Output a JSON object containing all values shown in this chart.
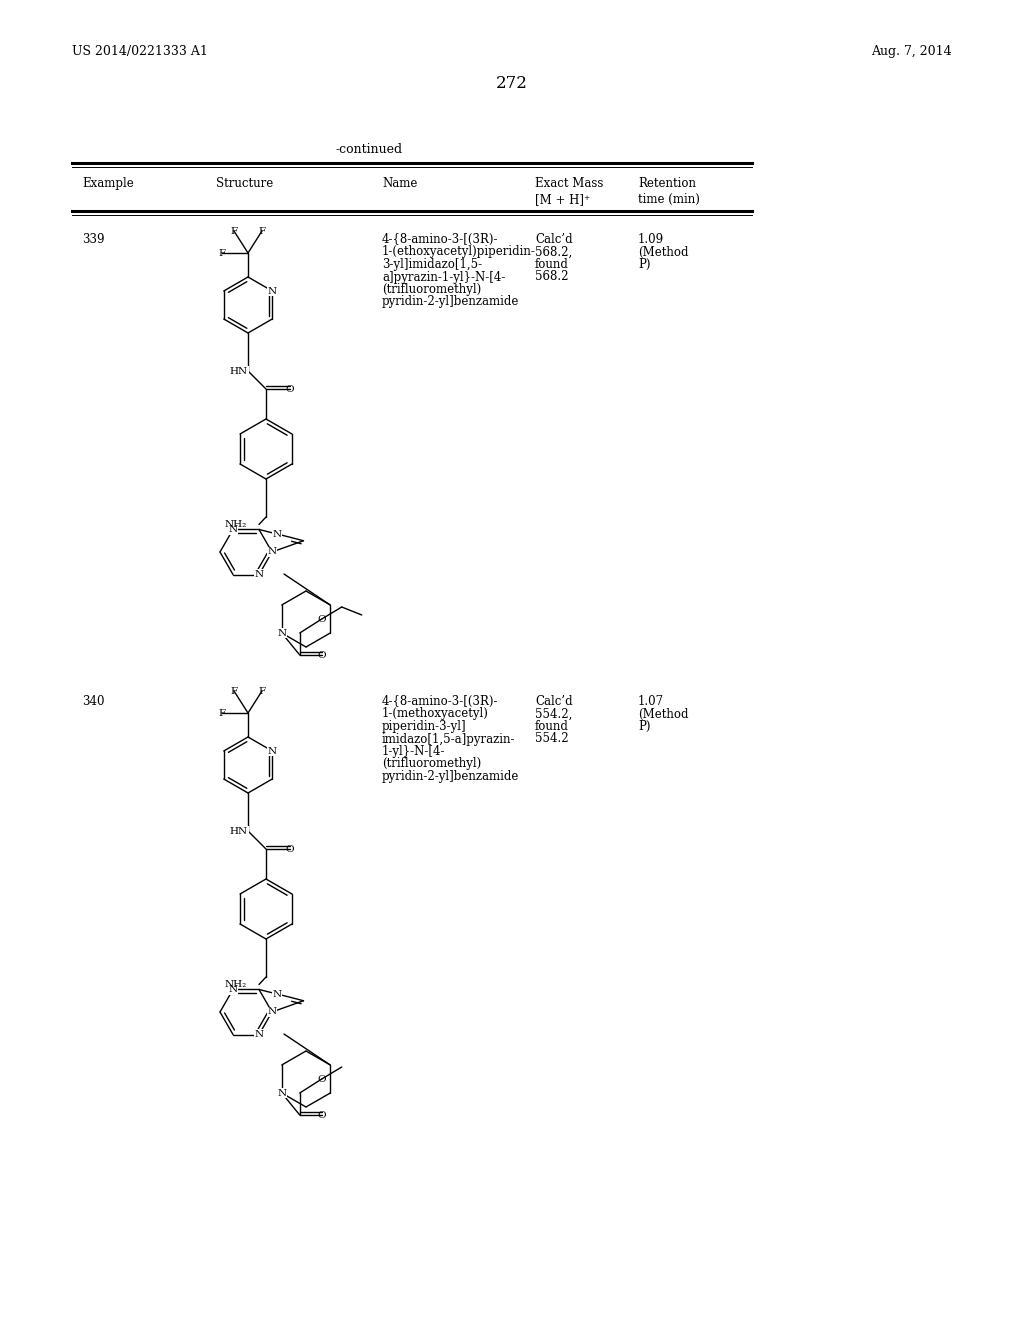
{
  "page_number": "272",
  "patent_number": "US 2014/0221333 A1",
  "patent_date": "Aug. 7, 2014",
  "continued_label": "-continued",
  "col1_header": "Example",
  "col2_header": "Structure",
  "col3_header": "Name",
  "col4_header_line1": "Exact Mass",
  "col4_header_line2": "[M + H]⁺",
  "col5_header_line1": "Retention",
  "col5_header_line2": "time (min)",
  "row1_example": "339",
  "row1_name": [
    "4-{8-amino-3-[(3R)-",
    "1-(ethoxyacetyl)piperidin-",
    "3-yl]imidazo[1,5-",
    "a]pyrazin-1-yl}-N-[4-",
    "(trifluoromethyl)",
    "pyridin-2-yl]benzamide"
  ],
  "row1_mass": [
    "Calc’d",
    "568.2,",
    "found",
    "568.2"
  ],
  "row1_retention": [
    "1.09",
    "(Method",
    "P)"
  ],
  "row2_example": "340",
  "row2_name": [
    "4-{8-amino-3-[(3R)-",
    "1-(methoxyacetyl)",
    "piperidin-3-yl]",
    "imidazo[1,5-a]pyrazin-",
    "1-yl}-N-[4-",
    "(trifluoromethyl)",
    "pyridin-2-yl]benzamide"
  ],
  "row2_mass": [
    "Calc’d",
    "554.2,",
    "found",
    "554.2"
  ],
  "row2_retention": [
    "1.07",
    "(Method",
    "P)"
  ],
  "bg_color": "#ffffff",
  "text_color": "#000000",
  "line_color": "#000000"
}
